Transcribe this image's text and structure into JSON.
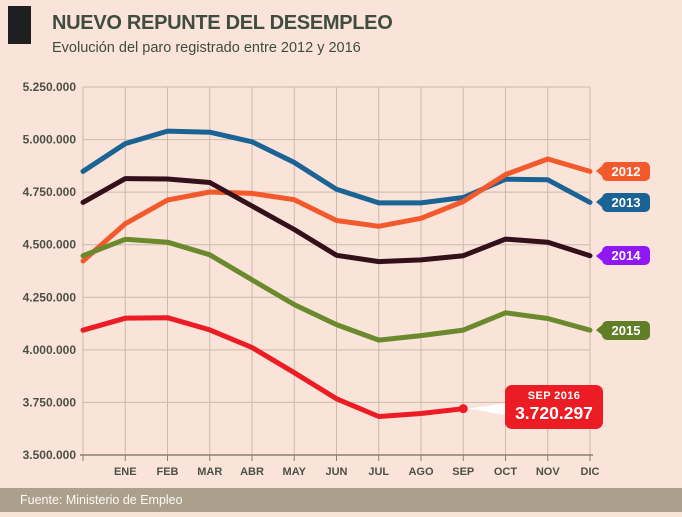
{
  "header": {
    "title": "NUEVO REPUNTE DEL DESEMPLEO",
    "subtitle": "Evolución del paro registrado entre 2012 y 2016"
  },
  "footer": {
    "source": "Fuente: Ministerio de Empleo"
  },
  "colors": {
    "background": "#FAE3D8",
    "accent_bar": "#1D1F20",
    "title_text": "#3E4D40",
    "axis_text": "#4B5147",
    "grid_line": "#CDBAAB",
    "axis_line": "#8C7F70",
    "footer_bar": "#ACA08D",
    "footer_text": "#FCF9F3",
    "annotation_bg": "#EC1C24"
  },
  "chart_data": {
    "type": "line",
    "title": "NUEVO REPUNTE DEL DESEMPLEO",
    "subtitle": "Evolución del paro registrado entre 2012 y 2016",
    "x_categories": [
      "ENE",
      "FEB",
      "MAR",
      "ABR",
      "MAY",
      "JUN",
      "JUL",
      "AGO",
      "SEP",
      "OCT",
      "NOV",
      "DIC"
    ],
    "y_tick_labels": [
      "5.250.000",
      "5.000.000",
      "4.750.000",
      "4.500.000",
      "4.250.000",
      "4.000.000",
      "3.750.000",
      "3.500.000"
    ],
    "y_min": 3500000,
    "y_max": 5250000,
    "y_step": 250000,
    "grid": true,
    "legend_position": "right",
    "note": "Each line starts at the y-axis with the previous December value",
    "series": [
      {
        "name": "2013",
        "line_color": "#1B6394",
        "badge_color": "#1B6394",
        "start_prev_dec": 4848723,
        "values": [
          4980778,
          5040222,
          5035243,
          4989193,
          4890928,
          4763680,
          4698814,
          4698783,
          4724355,
          4811383,
          4808908,
          4701338
        ]
      },
      {
        "name": "2012",
        "line_color": "#F2592B",
        "badge_color": "#F2592B",
        "start_prev_dec": 4422359,
        "values": [
          4599829,
          4712098,
          4750867,
          4744235,
          4714122,
          4615269,
          4587455,
          4625634,
          4705279,
          4833521,
          4907817,
          4848723
        ]
      },
      {
        "name": "2014",
        "line_color": "#34101A",
        "badge_color": "#9016F2",
        "start_prev_dec": 4701338,
        "values": [
          4814435,
          4812486,
          4795866,
          4684301,
          4572385,
          4449701,
          4419860,
          4427930,
          4447650,
          4526804,
          4512116,
          4447711
        ]
      },
      {
        "name": "2015",
        "line_color": "#6A8A2D",
        "badge_color": "#5F7E26",
        "start_prev_dec": 4447711,
        "values": [
          4525691,
          4512153,
          4451939,
          4333016,
          4215031,
          4120304,
          4046276,
          4067955,
          4094042,
          4176369,
          4149298,
          4093508
        ]
      },
      {
        "name": "2016",
        "line_color": "#EC1C24",
        "badge_color": null,
        "start_prev_dec": 4093508,
        "values": [
          4150755,
          4152986,
          4094770,
          4011171,
          3891403,
          3767054,
          3683061,
          3697496,
          3720297
        ]
      }
    ],
    "annotation": {
      "label": "SEP 2016",
      "value_text": "3.720.297",
      "value": 3720297,
      "month": "SEP"
    }
  }
}
